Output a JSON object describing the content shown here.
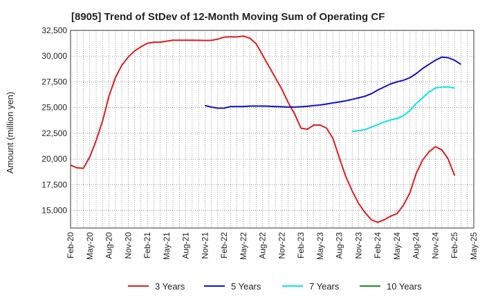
{
  "chart_data": {
    "type": "line",
    "title": "[8905]  Trend of StDev of 12-Month Moving Sum of Operating CF",
    "xlabel": "",
    "ylabel": "Amount (million yen)",
    "ylim": [
      13300,
      32500
    ],
    "yticks": [
      15000,
      17500,
      20000,
      22500,
      25000,
      27500,
      30000,
      32500
    ],
    "ytick_labels": [
      "15,000",
      "17,500",
      "20,000",
      "22,500",
      "25,000",
      "27,500",
      "30,000",
      "32,500"
    ],
    "xticks": [
      "Feb-20",
      "May-20",
      "Aug-20",
      "Nov-20",
      "Feb-21",
      "May-21",
      "Aug-21",
      "Nov-21",
      "Feb-22",
      "May-22",
      "Aug-22",
      "Nov-22",
      "Feb-23",
      "May-23",
      "Aug-23",
      "Nov-23",
      "Feb-24",
      "May-24",
      "Aug-24",
      "Nov-24",
      "Feb-25",
      "May-25"
    ],
    "grid": true,
    "legend_position": "bottom",
    "series": [
      {
        "name": "3 Years",
        "color": "#e31a1c",
        "start": "Feb-20",
        "values": [
          19400,
          19150,
          19100,
          20200,
          21800,
          23700,
          26100,
          27900,
          29100,
          29900,
          30500,
          30900,
          31250,
          31350,
          31350,
          31450,
          31550,
          31550,
          31550,
          31550,
          31530,
          31520,
          31530,
          31650,
          31850,
          31880,
          31870,
          31950,
          31750,
          31200,
          30100,
          29000,
          27900,
          26800,
          25500,
          24400,
          23000,
          22900,
          23300,
          23300,
          23000,
          22000,
          20100,
          18300,
          16900,
          15700,
          14800,
          14100,
          13850,
          14100,
          14450,
          14700,
          15500,
          16700,
          18600,
          19900,
          20700,
          21200,
          20900,
          20000,
          18400
        ]
      },
      {
        "name": "5 Years",
        "color": "#1010c8",
        "start": "Feb-20",
        "values": [
          null,
          null,
          null,
          null,
          null,
          null,
          null,
          null,
          null,
          null,
          null,
          null,
          null,
          null,
          null,
          null,
          null,
          null,
          null,
          null,
          null,
          25200,
          25050,
          24950,
          24950,
          25100,
          25100,
          25100,
          25150,
          25150,
          25150,
          25130,
          25100,
          25080,
          25050,
          25050,
          25080,
          25120,
          25200,
          25250,
          25350,
          25450,
          25550,
          25650,
          25800,
          25950,
          26100,
          26350,
          26700,
          27000,
          27300,
          27500,
          27650,
          27900,
          28300,
          28800,
          29200,
          29600,
          29900,
          29850,
          29600,
          29200
        ]
      },
      {
        "name": "7 Years",
        "color": "#00e5ee",
        "start": "Feb-20",
        "values": [
          null,
          null,
          null,
          null,
          null,
          null,
          null,
          null,
          null,
          null,
          null,
          null,
          null,
          null,
          null,
          null,
          null,
          null,
          null,
          null,
          null,
          null,
          null,
          null,
          null,
          null,
          null,
          null,
          null,
          null,
          null,
          null,
          null,
          null,
          null,
          null,
          null,
          null,
          null,
          null,
          null,
          null,
          null,
          null,
          22700,
          22750,
          22850,
          23100,
          23350,
          23600,
          23800,
          23950,
          24200,
          24700,
          25400,
          25950,
          26500,
          26900,
          27000,
          27000,
          26900
        ]
      },
      {
        "name": "10 Years",
        "color": "#228b22",
        "start": "Feb-20",
        "values": []
      }
    ]
  }
}
